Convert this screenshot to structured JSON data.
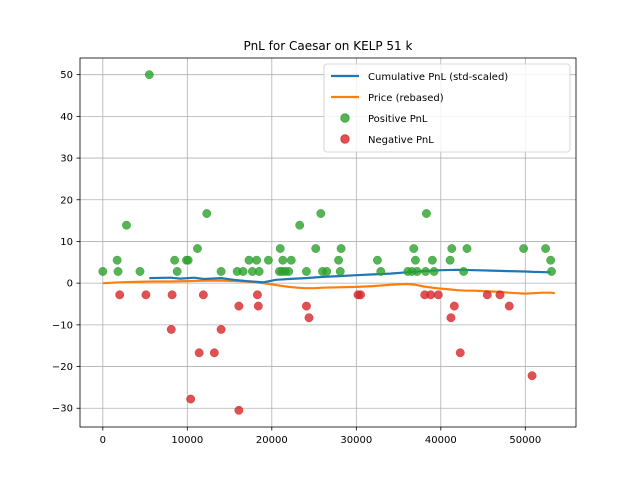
{
  "chart_data": {
    "type": "scatter",
    "title": "PnL for Caesar on KELP 51 k",
    "xlabel": "",
    "ylabel": "",
    "xlim": [
      -2700,
      56000
    ],
    "ylim": [
      -34.5,
      54
    ],
    "grid": true,
    "legend_position": "upper-right",
    "x_ticks": [
      0,
      10000,
      20000,
      30000,
      40000,
      50000
    ],
    "x_tick_labels": [
      "0",
      "10000",
      "20000",
      "30000",
      "40000",
      "50000"
    ],
    "y_ticks": [
      -30,
      -20,
      -10,
      0,
      10,
      20,
      30,
      40,
      50
    ],
    "y_tick_labels": [
      "−30",
      "−20",
      "−10",
      "0",
      "10",
      "20",
      "30",
      "40",
      "50"
    ],
    "colors": {
      "cumulative": "#1f77b4",
      "price": "#ff7f0e",
      "positive": "#2ca02c",
      "negative": "#d62728",
      "grid": "#b0b0b0"
    },
    "legend": [
      {
        "label": "Cumulative PnL (std-scaled)",
        "kind": "line",
        "color": "#1f77b4"
      },
      {
        "label": "Price (rebased)",
        "kind": "line",
        "color": "#ff7f0e"
      },
      {
        "label": "Positive PnL",
        "kind": "marker",
        "color": "#2ca02c"
      },
      {
        "label": "Negative PnL",
        "kind": "marker",
        "color": "#d62728"
      }
    ],
    "series": [
      {
        "name": "Cumulative PnL (std-scaled)",
        "kind": "line",
        "x": [
          5500,
          8000,
          9200,
          10800,
          12000,
          14000,
          15500,
          17000,
          19000,
          20500,
          22000,
          24000,
          26000,
          28000,
          30000,
          32000,
          34000,
          36000,
          38000,
          40000,
          42000,
          44000,
          46000,
          48000,
          50000,
          51000,
          53000
        ],
        "y": [
          1.2,
          1.3,
          1.1,
          1.3,
          1.0,
          1.2,
          0.8,
          0.5,
          0.2,
          0.8,
          1.0,
          1.2,
          1.5,
          1.7,
          1.9,
          2.1,
          2.3,
          2.6,
          2.9,
          3.1,
          3.2,
          3.1,
          3.0,
          2.9,
          2.8,
          2.7,
          2.6
        ]
      },
      {
        "name": "Price (rebased)",
        "kind": "line",
        "x": [
          0,
          2000,
          4000,
          6000,
          8000,
          10000,
          12000,
          14000,
          16000,
          17000,
          18000,
          19000,
          20000,
          21000,
          22000,
          23000,
          24000,
          25000,
          26000,
          28000,
          30000,
          32000,
          34000,
          36000,
          37000,
          38000,
          39000,
          40000,
          41000,
          42000,
          43000,
          44000,
          45000,
          46000,
          47000,
          48000,
          49000,
          50000,
          51000,
          52000,
          53000,
          53500
        ],
        "y": [
          0,
          0.2,
          0.3,
          0.4,
          0.4,
          0.5,
          0.6,
          0.6,
          0.5,
          0.4,
          0.2,
          0.0,
          -0.3,
          -0.6,
          -0.9,
          -1.1,
          -1.2,
          -1.2,
          -1.1,
          -1.0,
          -0.9,
          -0.7,
          -0.4,
          -0.2,
          -0.4,
          -0.8,
          -1.1,
          -1.3,
          -1.5,
          -1.7,
          -1.8,
          -1.8,
          -1.9,
          -2.0,
          -2.1,
          -2.3,
          -2.4,
          -2.5,
          -2.4,
          -2.3,
          -2.3,
          -2.4
        ]
      },
      {
        "name": "Positive PnL",
        "kind": "scatter",
        "points": [
          [
            0,
            2.8
          ],
          [
            1700,
            5.5
          ],
          [
            1800,
            2.8
          ],
          [
            2800,
            13.9
          ],
          [
            4400,
            2.8
          ],
          [
            5500,
            50
          ],
          [
            8500,
            5.5
          ],
          [
            8800,
            2.8
          ],
          [
            9900,
            5.5
          ],
          [
            10100,
            5.5
          ],
          [
            11200,
            8.3
          ],
          [
            12300,
            16.7
          ],
          [
            14000,
            2.8
          ],
          [
            15900,
            2.8
          ],
          [
            16600,
            2.8
          ],
          [
            17300,
            5.5
          ],
          [
            17700,
            2.8
          ],
          [
            18200,
            5.5
          ],
          [
            18500,
            2.8
          ],
          [
            19600,
            5.5
          ],
          [
            20900,
            2.8
          ],
          [
            21000,
            8.3
          ],
          [
            21200,
            2.8
          ],
          [
            21300,
            5.5
          ],
          [
            21600,
            2.8
          ],
          [
            22000,
            2.8
          ],
          [
            22300,
            5.5
          ],
          [
            23300,
            13.9
          ],
          [
            24100,
            2.8
          ],
          [
            25200,
            8.3
          ],
          [
            25800,
            16.7
          ],
          [
            26000,
            2.8
          ],
          [
            26500,
            2.8
          ],
          [
            27900,
            5.5
          ],
          [
            28100,
            2.8
          ],
          [
            28200,
            8.3
          ],
          [
            32500,
            5.5
          ],
          [
            32900,
            2.8
          ],
          [
            36100,
            2.8
          ],
          [
            36600,
            2.8
          ],
          [
            36800,
            8.3
          ],
          [
            37000,
            5.5
          ],
          [
            37200,
            2.8
          ],
          [
            38200,
            2.8
          ],
          [
            38300,
            16.7
          ],
          [
            39000,
            5.5
          ],
          [
            39200,
            2.8
          ],
          [
            41100,
            5.5
          ],
          [
            41300,
            8.3
          ],
          [
            42700,
            2.8
          ],
          [
            43100,
            8.3
          ],
          [
            49800,
            8.3
          ],
          [
            52400,
            8.3
          ],
          [
            53000,
            5.5
          ],
          [
            53100,
            2.8
          ]
        ]
      },
      {
        "name": "Negative PnL",
        "kind": "scatter",
        "points": [
          [
            2000,
            -2.8
          ],
          [
            5100,
            -2.8
          ],
          [
            8100,
            -11.1
          ],
          [
            8200,
            -2.8
          ],
          [
            10400,
            -27.8
          ],
          [
            11400,
            -16.7
          ],
          [
            11900,
            -2.8
          ],
          [
            13200,
            -16.7
          ],
          [
            14000,
            -11.1
          ],
          [
            16100,
            -30.5
          ],
          [
            16100,
            -5.5
          ],
          [
            18300,
            -2.8
          ],
          [
            18400,
            -5.5
          ],
          [
            24100,
            -5.5
          ],
          [
            24400,
            -8.3
          ],
          [
            30200,
            -2.8
          ],
          [
            30500,
            -2.8
          ],
          [
            38100,
            -2.8
          ],
          [
            38800,
            -2.8
          ],
          [
            39700,
            -2.8
          ],
          [
            41200,
            -8.3
          ],
          [
            41600,
            -5.5
          ],
          [
            42300,
            -16.7
          ],
          [
            45500,
            -2.8
          ],
          [
            47000,
            -2.8
          ],
          [
            48100,
            -5.5
          ],
          [
            50800,
            -22.2
          ]
        ]
      }
    ]
  }
}
